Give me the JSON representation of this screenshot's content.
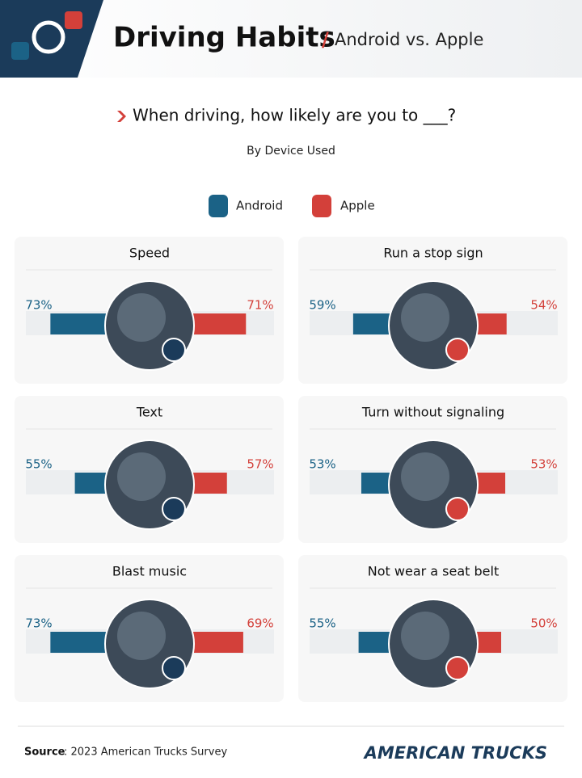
{
  "header": {
    "title": "Driving Habits",
    "separator": "/",
    "subtitle": "Android vs. Apple"
  },
  "question": "When driving, how likely are you to ___?",
  "subquestion": "By Device Used",
  "legend": [
    {
      "name": "Android",
      "color": "#1b6286"
    },
    {
      "name": "Apple",
      "color": "#d3403a"
    }
  ],
  "chart_data": [
    {
      "type": "bar",
      "title": "Speed",
      "values": [
        73,
        71
      ],
      "value_labels": [
        "73%",
        "71%"
      ]
    },
    {
      "type": "bar",
      "title": "Run a stop sign",
      "values": [
        59,
        54
      ],
      "value_labels": [
        "59%",
        "54%"
      ]
    },
    {
      "type": "bar",
      "title": "Text",
      "values": [
        55,
        57
      ],
      "value_labels": [
        "55%",
        "57%"
      ]
    },
    {
      "type": "bar",
      "title": "Turn without signaling",
      "values": [
        53,
        53
      ],
      "value_labels": [
        "53%",
        "53%"
      ]
    },
    {
      "type": "bar",
      "title": "Blast music",
      "values": [
        73,
        69
      ],
      "value_labels": [
        "73%",
        "69%"
      ]
    },
    {
      "type": "bar",
      "title": "Not wear a seat belt",
      "values": [
        55,
        50
      ],
      "value_labels": [
        "55%",
        "50%"
      ]
    }
  ],
  "footer": {
    "source_label": "Source",
    "source_text": ": 2023 American Trucks Survey",
    "logo": "AMERICAN TRUCKS"
  }
}
